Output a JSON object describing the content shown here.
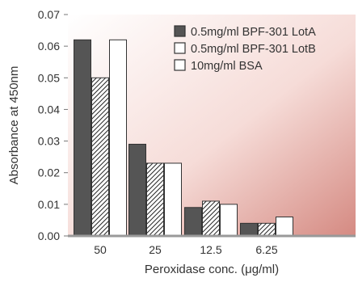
{
  "chart_data": {
    "type": "bar",
    "categories": [
      "50",
      "25",
      "12.5",
      "6.25"
    ],
    "series": [
      {
        "name": "0.5mg/ml BPF-301 LotA",
        "values": [
          0.062,
          0.029,
          0.009,
          0.004
        ],
        "fill": "#555555",
        "pattern": "solid"
      },
      {
        "name": "0.5mg/ml BPF-301 LotB",
        "values": [
          0.05,
          0.023,
          0.011,
          0.004
        ],
        "fill": "#ffffff",
        "pattern": "hatched"
      },
      {
        "name": "10mg/ml BSA",
        "values": [
          0.062,
          0.023,
          0.01,
          0.006
        ],
        "fill": "#ffffff",
        "pattern": "white"
      }
    ],
    "xlabel": "Peroxidase conc. (μg/ml)",
    "ylabel": "Absorbance at 450nm",
    "ylim": [
      0,
      0.07
    ],
    "yticks": [
      "0.00",
      "0.01",
      "0.02",
      "0.03",
      "0.04",
      "0.05",
      "0.06",
      "0.07"
    ],
    "grid": false,
    "legend_position": "top-right",
    "background_gradient": [
      "#ffffff",
      "#d9918a"
    ]
  }
}
